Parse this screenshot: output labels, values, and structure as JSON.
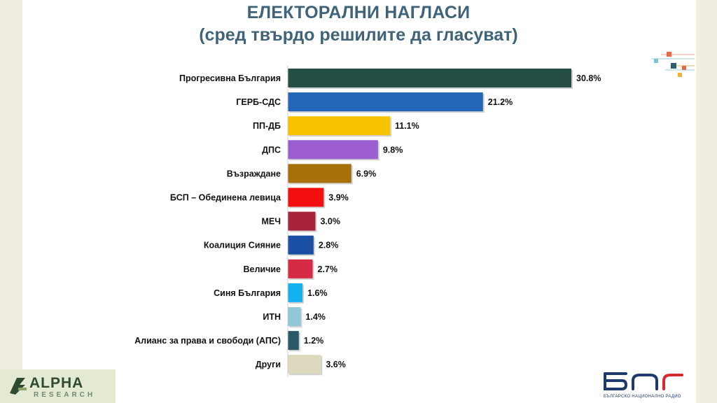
{
  "title": "ЕЛЕКТОРАЛНИ НАГЛАСИ",
  "subtitle": "(сред твърдо решилите да гласуват)",
  "chart_data": {
    "type": "bar",
    "orientation": "horizontal",
    "title": "ЕЛЕКТОРАЛНИ НАГЛАСИ",
    "subtitle": "(сред твърдо решилите да гласуват)",
    "xlabel": "",
    "ylabel": "",
    "grid": false,
    "categories": [
      "Прогресивна България",
      "ГЕРБ-СДС",
      "ПП-ДБ",
      "ДПС",
      "Възраждане",
      "БСП – Обединена левица",
      "МЕЧ",
      "Коалиция Сияние",
      "Величие",
      "Синя България",
      "ИТН",
      "Алианс за права и свободи (АПС)",
      "Други"
    ],
    "values": [
      30.8,
      21.2,
      11.1,
      9.8,
      6.9,
      3.9,
      3.0,
      2.8,
      2.7,
      1.6,
      1.4,
      1.2,
      3.6
    ],
    "value_labels": [
      "30.8%",
      "21.2%",
      "11.1%",
      "9.8%",
      "6.9%",
      "3.9%",
      "3.0%",
      "2.8%",
      "2.7%",
      "1.6%",
      "1.4%",
      "1.2%",
      "3.6%"
    ],
    "colors": [
      "#254f44",
      "#2467b9",
      "#f7c200",
      "#9b5dd0",
      "#a6700b",
      "#f40f0f",
      "#a8243a",
      "#1a4fa3",
      "#d72a45",
      "#12b2ee",
      "#92c6d8",
      "#2b5a66",
      "#ddd9bf"
    ],
    "unit": "%"
  },
  "logos": {
    "left_name": "ALPHA",
    "left_sub": "RESEARCH",
    "right_tagline": "БЪЛГАРСКО НАЦИОНАЛНО РАДИО"
  },
  "colors": {
    "title": "#3f6479",
    "background": "#f1ede0",
    "slide": "#ffffff"
  }
}
